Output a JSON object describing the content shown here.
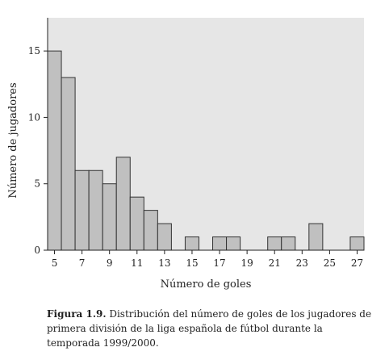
{
  "chart_data": {
    "type": "bar",
    "x": [
      5,
      6,
      7,
      8,
      9,
      10,
      11,
      12,
      13,
      14,
      15,
      16,
      17,
      18,
      19,
      20,
      21,
      22,
      23,
      24,
      25,
      26,
      27
    ],
    "values": [
      15,
      13,
      6,
      6,
      5,
      7,
      4,
      3,
      2,
      0,
      1,
      0,
      1,
      1,
      0,
      0,
      1,
      1,
      0,
      2,
      0,
      0,
      1
    ],
    "xticks": [
      "5",
      "7",
      "9",
      "11",
      "13",
      "15",
      "17",
      "19",
      "21",
      "23",
      "25",
      "27"
    ],
    "yticks": [
      "0",
      "5",
      "10",
      "15"
    ],
    "xlabel": "Número de goles",
    "ylabel": "Número de jugadores",
    "xlim": [
      4.5,
      27.5
    ],
    "ylim": [
      0,
      17.5
    ],
    "grid": false,
    "colors": {
      "bar_fill": "#c0c0c0",
      "bar_stroke": "#333333",
      "plot_bg": "#e6e6e6"
    }
  },
  "caption": {
    "label": "Figura 1.9.",
    "text": " Distribución del número de goles de los jugadores de primera división de la liga española de fútbol durante la temporada 1999/2000."
  }
}
